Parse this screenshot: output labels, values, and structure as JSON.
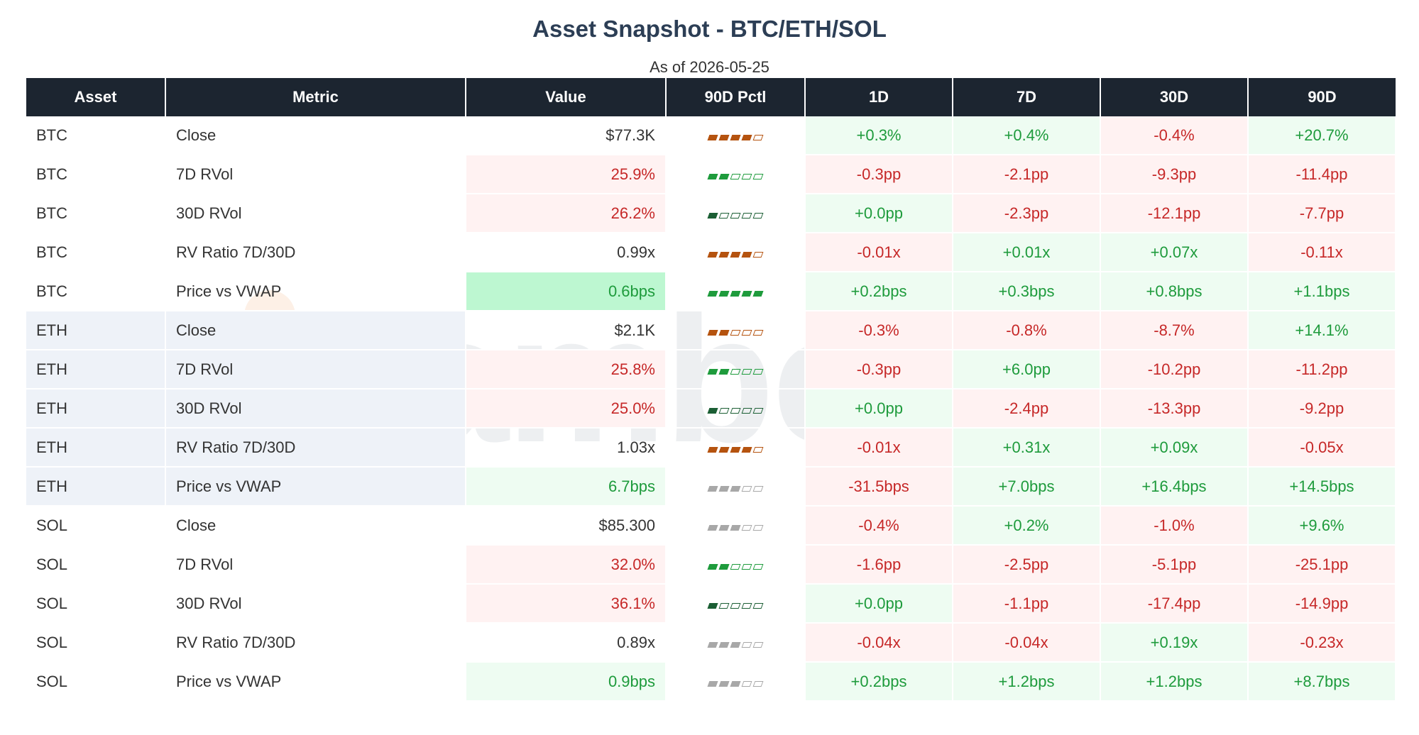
{
  "title": "Asset Snapshot - BTC/ETH/SOL",
  "subtitle": "As of 2026-05-25",
  "watermark": "amberdata",
  "colors": {
    "header_bg": "#1c2530",
    "positive": "#1e9b3c",
    "negative": "#c62828",
    "amber": "#a8640c",
    "bar_green": "#1e9b3c",
    "bar_dark_green": "#1b5e34",
    "bar_orange": "#b5530f",
    "bar_gray": "#a8a8a8"
  },
  "chart_data": {
    "type": "table",
    "columns": [
      "Asset",
      "Metric",
      "Value",
      "90D Pctl",
      "1D",
      "7D",
      "30D",
      "90D"
    ],
    "rows": [
      {
        "asset": "BTC",
        "metric": "Close",
        "value": "$77.3K",
        "pctl": 4,
        "pctl_color": "orange",
        "value_tone": "amber",
        "value_bg": "amber",
        "changes": [
          "+0.3%",
          "+0.4%",
          "-0.4%",
          "+20.7%"
        ]
      },
      {
        "asset": "BTC",
        "metric": "7D RVol",
        "value": "25.9%",
        "pctl": 2,
        "pctl_color": "green",
        "value_tone": "neg",
        "value_bg": "neg",
        "changes": [
          "-0.3pp",
          "-2.1pp",
          "-9.3pp",
          "-11.4pp"
        ]
      },
      {
        "asset": "BTC",
        "metric": "30D RVol",
        "value": "26.2%",
        "pctl": 1,
        "pctl_color": "darkgreen",
        "value_tone": "neg",
        "value_bg": "neg",
        "changes": [
          "+0.0pp",
          "-2.3pp",
          "-12.1pp",
          "-7.7pp"
        ]
      },
      {
        "asset": "BTC",
        "metric": "RV Ratio 7D/30D",
        "value": "0.99x",
        "pctl": 4,
        "pctl_color": "orange",
        "value_tone": "amber",
        "value_bg": "amber",
        "changes": [
          "-0.01x",
          "+0.01x",
          "+0.07x",
          "-0.11x"
        ]
      },
      {
        "asset": "BTC",
        "metric": "Price vs VWAP",
        "value": "0.6bps",
        "pctl": 5,
        "pctl_color": "green",
        "value_tone": "pos",
        "value_bg": "strong",
        "changes": [
          "+0.2bps",
          "+0.3bps",
          "+0.8bps",
          "+1.1bps"
        ]
      },
      {
        "asset": "ETH",
        "metric": "Close",
        "value": "$2.1K",
        "pctl": 2,
        "pctl_color": "orange",
        "value_tone": "amber",
        "value_bg": "amber",
        "changes": [
          "-0.3%",
          "-0.8%",
          "-8.7%",
          "+14.1%"
        ]
      },
      {
        "asset": "ETH",
        "metric": "7D RVol",
        "value": "25.8%",
        "pctl": 2,
        "pctl_color": "green",
        "value_tone": "neg",
        "value_bg": "neg",
        "changes": [
          "-0.3pp",
          "+6.0pp",
          "-10.2pp",
          "-11.2pp"
        ]
      },
      {
        "asset": "ETH",
        "metric": "30D RVol",
        "value": "25.0%",
        "pctl": 1,
        "pctl_color": "darkgreen",
        "value_tone": "neg",
        "value_bg": "neg",
        "changes": [
          "+0.0pp",
          "-2.4pp",
          "-13.3pp",
          "-9.2pp"
        ]
      },
      {
        "asset": "ETH",
        "metric": "RV Ratio 7D/30D",
        "value": "1.03x",
        "pctl": 4,
        "pctl_color": "orange",
        "value_tone": "amber",
        "value_bg": "amber",
        "changes": [
          "-0.01x",
          "+0.31x",
          "+0.09x",
          "-0.05x"
        ]
      },
      {
        "asset": "ETH",
        "metric": "Price vs VWAP",
        "value": "6.7bps",
        "pctl": 3,
        "pctl_color": "gray",
        "value_tone": "pos",
        "value_bg": "pos",
        "changes": [
          "-31.5bps",
          "+7.0bps",
          "+16.4bps",
          "+14.5bps"
        ]
      },
      {
        "asset": "SOL",
        "metric": "Close",
        "value": "$85.300",
        "pctl": 3,
        "pctl_color": "gray",
        "value_tone": "amber",
        "value_bg": "amber",
        "changes": [
          "-0.4%",
          "+0.2%",
          "-1.0%",
          "+9.6%"
        ]
      },
      {
        "asset": "SOL",
        "metric": "7D RVol",
        "value": "32.0%",
        "pctl": 2,
        "pctl_color": "green",
        "value_tone": "neg",
        "value_bg": "neg",
        "changes": [
          "-1.6pp",
          "-2.5pp",
          "-5.1pp",
          "-25.1pp"
        ]
      },
      {
        "asset": "SOL",
        "metric": "30D RVol",
        "value": "36.1%",
        "pctl": 1,
        "pctl_color": "darkgreen",
        "value_tone": "neg",
        "value_bg": "neg",
        "changes": [
          "+0.0pp",
          "-1.1pp",
          "-17.4pp",
          "-14.9pp"
        ]
      },
      {
        "asset": "SOL",
        "metric": "RV Ratio 7D/30D",
        "value": "0.89x",
        "pctl": 3,
        "pctl_color": "gray",
        "value_tone": "amber",
        "value_bg": "amber",
        "changes": [
          "-0.04x",
          "-0.04x",
          "+0.19x",
          "-0.23x"
        ]
      },
      {
        "asset": "SOL",
        "metric": "Price vs VWAP",
        "value": "0.9bps",
        "pctl": 3,
        "pctl_color": "gray",
        "value_tone": "pos",
        "value_bg": "pos",
        "changes": [
          "+0.2bps",
          "+1.2bps",
          "+1.2bps",
          "+8.7bps"
        ]
      }
    ]
  }
}
